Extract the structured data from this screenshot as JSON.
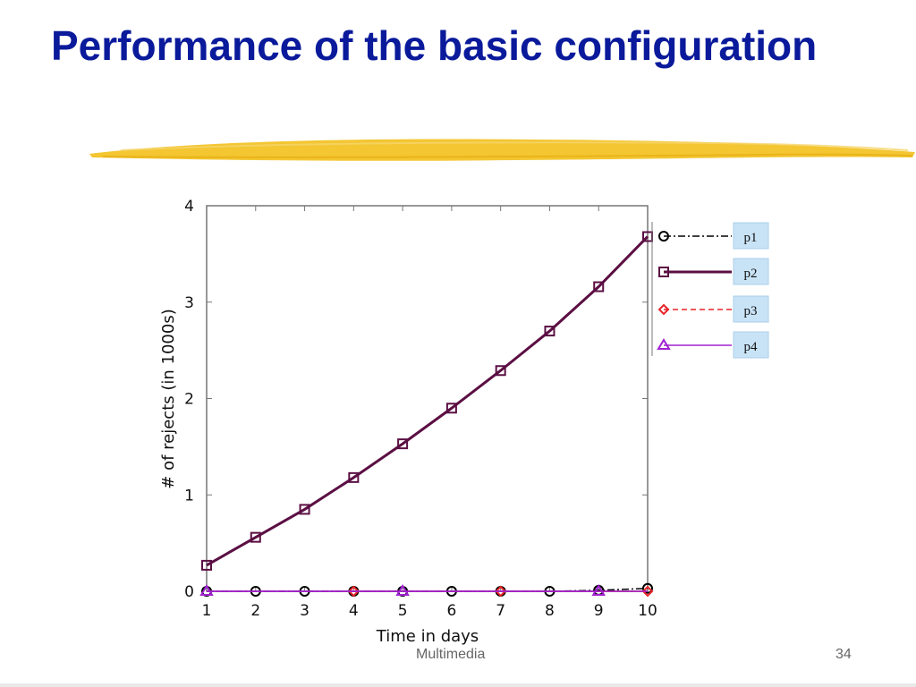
{
  "slide": {
    "title": "Performance of the basic configuration",
    "footer_center": "Multimedia",
    "page_number": "34"
  },
  "colors": {
    "title": "#0a1a9b",
    "brush": "#f2c01c",
    "legend_box": "#c9e3f6"
  },
  "chart_data": {
    "type": "line",
    "xlabel": "Time in days",
    "ylabel": "# of rejects (in 1000s)",
    "x": [
      1,
      2,
      3,
      4,
      5,
      6,
      7,
      8,
      9,
      10
    ],
    "xlim": [
      1,
      10
    ],
    "ylim": [
      0,
      4
    ],
    "xticks": [
      1,
      2,
      3,
      4,
      5,
      6,
      7,
      8,
      9,
      10
    ],
    "yticks": [
      0,
      1,
      2,
      3,
      4
    ],
    "grid": false,
    "legend_position": "right",
    "series": [
      {
        "name": "p1",
        "color": "#000000",
        "marker": "circle",
        "dash": "8,3,2,3",
        "width": 1.5,
        "values": [
          0.0,
          0.0,
          0.0,
          0.0,
          0.0,
          0.0,
          0.0,
          0.0,
          0.01,
          0.03
        ]
      },
      {
        "name": "p2",
        "color": "#5b0f43",
        "marker": "square",
        "dash": "",
        "width": 3,
        "values": [
          0.27,
          0.56,
          0.85,
          1.18,
          1.53,
          1.9,
          2.29,
          2.7,
          3.16,
          3.68
        ]
      },
      {
        "name": "p3",
        "color": "#e8242a",
        "marker": "diamond",
        "dash": "6,4",
        "width": 1.5,
        "values": [
          null,
          null,
          null,
          0.0,
          null,
          null,
          0.0,
          null,
          null,
          0.0
        ]
      },
      {
        "name": "p4",
        "color": "#a020d0",
        "marker": "triangle",
        "dash": "",
        "width": 1.5,
        "values": [
          0.0,
          null,
          null,
          null,
          0.0,
          null,
          null,
          null,
          0.0,
          null
        ]
      }
    ]
  }
}
